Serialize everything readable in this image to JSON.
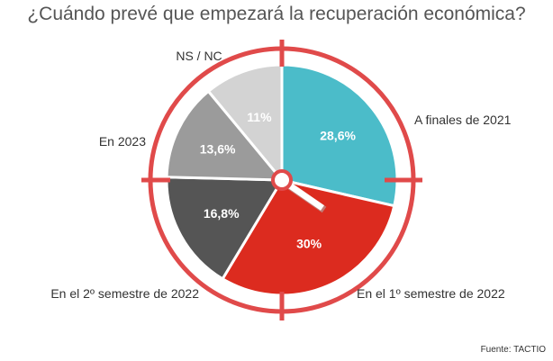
{
  "title": "¿Cuándo prevé que empezará la recuperación económica?",
  "source": "Fuente: TACTIO",
  "colors": {
    "ring": "#e04a4a",
    "slice_border": "#ffffff"
  },
  "chart_data": {
    "type": "pie",
    "title": "¿Cuándo prevé que empezará la recuperación económica?",
    "slices": [
      {
        "label": "A finales de 2021",
        "value": 28.6,
        "value_label": "28,6%",
        "color": "#4bbcc9",
        "text_color": "#ffffff"
      },
      {
        "label": "En el 1º semestre de 2022",
        "value": 30,
        "value_label": "30%",
        "color": "#dc2b1f",
        "text_color": "#ffffff"
      },
      {
        "label": "En el 2º semestre de 2022",
        "value": 16.8,
        "value_label": "16,8%",
        "color": "#555555",
        "text_color": "#ffffff"
      },
      {
        "label": "En 2023",
        "value": 13.6,
        "value_label": "13,6%",
        "color": "#9b9b9b",
        "text_color": "#ffffff"
      },
      {
        "label": "NS / NC",
        "value": 11,
        "value_label": "11%",
        "color": "#d3d3d3",
        "text_color": "#ffffff"
      }
    ],
    "start_angle_deg": 0,
    "direction": "clockwise"
  }
}
